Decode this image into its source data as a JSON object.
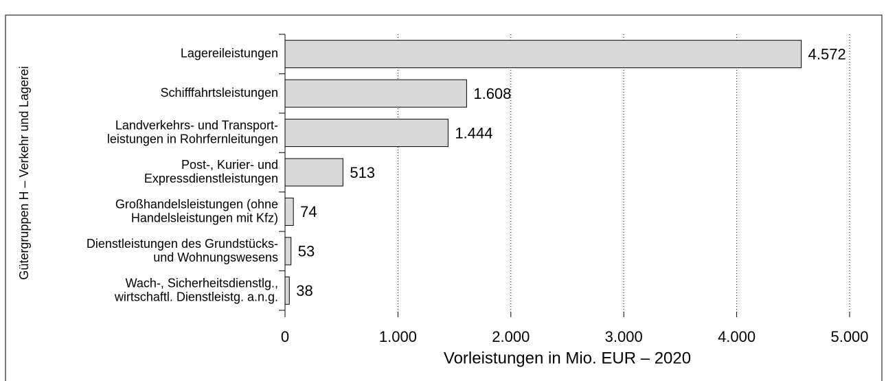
{
  "chart_data": {
    "type": "bar",
    "orientation": "horizontal",
    "categories": [
      "Lagereileistungen",
      "Schifffahrtsleistungen",
      "Landverkehrs- und Transport-\nleistungen in Rohrfernleitungen",
      "Post-, Kurier- und\nExpressdienstleistungen",
      "Großhandelsleistungen (ohne\nHandelsleistungen mit Kfz)",
      "Dienstleistungen des Grundstücks-\nund Wohnungswesens",
      "Wach-, Sicherheitsdienstlg.,\nwirtschaftl. Dienstleistg. a.n.g."
    ],
    "values": [
      4572,
      1608,
      1444,
      513,
      74,
      53,
      38
    ],
    "value_labels": [
      "4.572",
      "1.608",
      "1.444",
      "513",
      "74",
      "53",
      "38"
    ],
    "color": "#d9d9d9",
    "xlim": [
      0,
      5000
    ],
    "xticks": [
      0,
      {
        "value": 1000,
        "label": "1.000"
      },
      {
        "value": 2000,
        "label": "2.000"
      },
      {
        "value": 3000,
        "label": "3.000"
      },
      {
        "value": 4000,
        "label": "4.000"
      },
      {
        "value": 5000,
        "label": "5.000"
      }
    ],
    "xlabel": "Vorleistungen in Mio. EUR – 2020",
    "ylabel": "Gütergruppen H – Verkehr und Lagerei",
    "grid": true
  }
}
